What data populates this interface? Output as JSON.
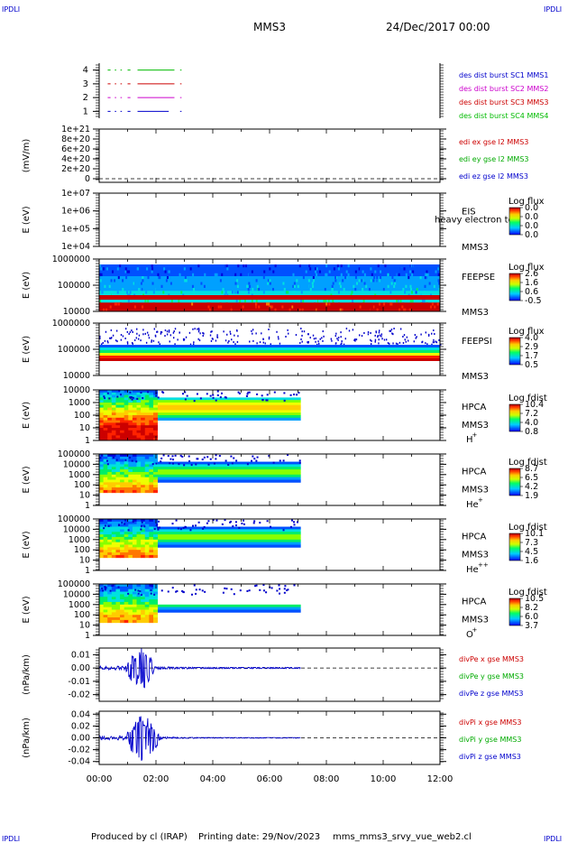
{
  "header": {
    "corner_tl": "IPDLI",
    "corner_tr": "IPDLI",
    "corner_bl": "IPDLI",
    "corner_br": "IPDLI",
    "mission": "MMS3",
    "date": "24/Dec/2017 00:00"
  },
  "footer": {
    "producer": "Produced by cl (IRAP)",
    "print_date": "Printing date: 29/Nov/2023",
    "file": "mms_mms3_srvy_vue_web2.cl"
  },
  "time_axis": {
    "range_h": [
      0,
      12
    ],
    "tick_labels": [
      "00:00",
      "02:00",
      "04:00",
      "06:00",
      "08:00",
      "10:00",
      "12:00"
    ]
  },
  "colors": {
    "mms1": "#0000cc",
    "mms2": "#cc00cc",
    "mms3": "#cc0000",
    "mms4": "#00bb00",
    "ex": "#cc0000",
    "ey": "#00aa00",
    "ez": "#0000cc"
  },
  "chart_data": [
    {
      "type": "line",
      "name": "burst",
      "ylabel": "",
      "ylim": [
        0.5,
        4.5
      ],
      "y_ticks": [
        "1",
        "2",
        "3",
        "4"
      ],
      "legend": [
        {
          "text": "des dist burst SC1 MMS1",
          "color": "#0000cc"
        },
        {
          "text": "des dist burst SC2 MMS2",
          "color": "#cc00cc"
        },
        {
          "text": "des dist burst SC3 MMS3",
          "color": "#cc0000"
        },
        {
          "text": "des dist burst SC4 MMS4",
          "color": "#00bb00"
        }
      ],
      "series": [
        {
          "name": "MMS4",
          "y": 4,
          "segments": [
            [
              0.3,
              0.4
            ],
            [
              0.55,
              0.6
            ],
            [
              0.75,
              0.8
            ],
            [
              1.0,
              1.1
            ],
            [
              1.35,
              2.65
            ],
            [
              2.85,
              2.9
            ]
          ]
        },
        {
          "name": "MMS3",
          "y": 3,
          "segments": [
            [
              0.3,
              0.4
            ],
            [
              0.55,
              0.6
            ],
            [
              0.75,
              0.8
            ],
            [
              1.0,
              1.1
            ],
            [
              1.35,
              2.65
            ],
            [
              2.85,
              2.9
            ]
          ]
        },
        {
          "name": "MMS2",
          "y": 2,
          "segments": [
            [
              0.3,
              0.4
            ],
            [
              0.55,
              0.6
            ],
            [
              0.75,
              0.8
            ],
            [
              1.0,
              1.1
            ],
            [
              1.35,
              2.65
            ],
            [
              2.85,
              2.9
            ]
          ]
        },
        {
          "name": "MMS1",
          "y": 1,
          "segments": [
            [
              0.3,
              0.4
            ],
            [
              0.55,
              0.6
            ],
            [
              0.75,
              0.8
            ],
            [
              1.0,
              1.1
            ],
            [
              1.35,
              2.45
            ],
            [
              2.85,
              2.9
            ]
          ]
        }
      ]
    },
    {
      "type": "line",
      "name": "edi",
      "ylabel": "(mV/m)",
      "ylim": [
        0,
        1e+21
      ],
      "y_ticks": [
        "1e+21",
        "8e+20",
        "6e+20",
        "4e+20",
        "2e+20",
        "0"
      ],
      "legend": [
        {
          "text": "edi ex gse l2 MMS3",
          "color": "#cc0000"
        },
        {
          "text": "edi ey gse l2 MMS3",
          "color": "#00aa00"
        },
        {
          "text": "edi ez gse l2 MMS3",
          "color": "#0000cc"
        }
      ],
      "zero_line": true
    },
    {
      "type": "heatmap",
      "name": "eis",
      "ylabel": "E (eV)",
      "y_ticks": [
        "1e+07",
        "1e+06",
        "1e+05",
        "1e+04"
      ],
      "instrument": "EIS",
      "overlay": "heavy electron to",
      "sc": "MMS3",
      "cb_title": "Log flux",
      "cb_ticks": [
        "0.0",
        "0.0",
        "0.0",
        "0.0"
      ]
    },
    {
      "type": "heatmap",
      "name": "feeps_e",
      "ylabel": "E (eV)",
      "y_ticks": [
        "1000000",
        "100000",
        "10000"
      ],
      "instrument": "FEEPSE",
      "sc": "MMS3",
      "cb_title": "Log flux",
      "cb_ticks": [
        "2.6",
        "1.6",
        "0.6",
        "-0.5"
      ],
      "t_range": [
        0,
        12
      ]
    },
    {
      "type": "heatmap",
      "name": "feeps_i",
      "ylabel": "E (eV)",
      "y_ticks": [
        "1000000",
        "100000",
        "10000"
      ],
      "instrument": "FEEPSI",
      "sc": "MMS3",
      "cb_title": "Log flux",
      "cb_ticks": [
        "4.0",
        "2.9",
        "1.7",
        "0.5"
      ],
      "t_range": [
        0,
        12
      ]
    },
    {
      "type": "heatmap",
      "name": "hpca_h",
      "ylabel": "E (eV)",
      "y_ticks": [
        "10000",
        "1000",
        "100",
        "10",
        "1"
      ],
      "instrument": "HPCA",
      "sc": "MMS3",
      "species": "H",
      "species_sup": "+",
      "cb_title": "Log fdist",
      "cb_ticks": [
        "10.4",
        "7.2",
        "4.0",
        "0.8"
      ],
      "t_range": [
        0,
        7.1
      ]
    },
    {
      "type": "heatmap",
      "name": "hpca_he",
      "ylabel": "E (eV)",
      "y_ticks": [
        "100000",
        "10000",
        "1000",
        "100",
        "10",
        "1"
      ],
      "instrument": "HPCA",
      "sc": "MMS3",
      "species": "He",
      "species_sup": "+",
      "cb_title": "Log fdist",
      "cb_ticks": [
        "8.7",
        "6.5",
        "4.2",
        "1.9"
      ],
      "t_range": [
        0,
        7.1
      ]
    },
    {
      "type": "heatmap",
      "name": "hpca_he2",
      "ylabel": "E (eV)",
      "y_ticks": [
        "100000",
        "10000",
        "1000",
        "100",
        "10",
        "1"
      ],
      "instrument": "HPCA",
      "sc": "MMS3",
      "species": "He",
      "species_sup": "++",
      "cb_title": "Log fdist",
      "cb_ticks": [
        "10.1",
        "7.3",
        "4.5",
        "1.6"
      ],
      "t_range": [
        0,
        7.1
      ]
    },
    {
      "type": "heatmap",
      "name": "hpca_o",
      "ylabel": "E (eV)",
      "y_ticks": [
        "100000",
        "10000",
        "1000",
        "100",
        "10",
        "1"
      ],
      "instrument": "HPCA",
      "sc": "MMS3",
      "species": "O",
      "species_sup": "+",
      "cb_title": "Log fdist",
      "cb_ticks": [
        "10.5",
        "8.2",
        "6.0",
        "3.7"
      ],
      "t_range": [
        0,
        7.1
      ]
    },
    {
      "type": "line",
      "name": "divpe",
      "ylabel": "(nPa/km)",
      "ylim": [
        -0.025,
        0.015
      ],
      "y_ticks": [
        "0.01",
        "0.00",
        "-0.01",
        "-0.02"
      ],
      "y_tick_values": [
        0.01,
        0.0,
        -0.01,
        -0.02
      ],
      "legend": [
        {
          "text": "divPe x gse MMS3",
          "color": "#cc0000"
        },
        {
          "text": "divPe y gse MMS3",
          "color": "#00aa00"
        },
        {
          "text": "divPe z gse MMS3",
          "color": "#0000cc"
        }
      ],
      "zero_line": true,
      "data_end_h": 7.1,
      "burst_window_h": [
        0.9,
        2.0
      ],
      "burst_amplitude": 0.012
    },
    {
      "type": "line",
      "name": "divpi",
      "ylabel": "(nPa/km)",
      "ylim": [
        -0.045,
        0.045
      ],
      "y_ticks": [
        "0.04",
        "0.02",
        "0.00",
        "-0.02",
        "-0.04"
      ],
      "y_tick_values": [
        0.04,
        0.02,
        0.0,
        -0.02,
        -0.04
      ],
      "legend": [
        {
          "text": "divPi x gse MMS3",
          "color": "#cc0000"
        },
        {
          "text": "divPi y gse MMS3",
          "color": "#00aa00"
        },
        {
          "text": "divPi z gse MMS3",
          "color": "#0000cc"
        }
      ],
      "zero_line": true,
      "data_end_h": 7.1,
      "burst_window_h": [
        0.9,
        2.2
      ],
      "burst_amplitude": 0.03
    }
  ]
}
